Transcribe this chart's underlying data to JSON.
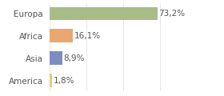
{
  "categories": [
    "America",
    "Asia",
    "Africa",
    "Europa"
  ],
  "values": [
    1.8,
    8.9,
    16.1,
    73.2
  ],
  "labels": [
    "1,8%",
    "8,9%",
    "16,1%",
    "73,2%"
  ],
  "colors": [
    "#e8c97a",
    "#7b8fbf",
    "#e8a870",
    "#a8bc88"
  ],
  "xlim": [
    0,
    100
  ],
  "background_color": "#ffffff",
  "bar_height": 0.6,
  "label_fontsize": 7.5,
  "tick_fontsize": 7.5,
  "grid_color": "#dddddd",
  "text_color": "#555555"
}
